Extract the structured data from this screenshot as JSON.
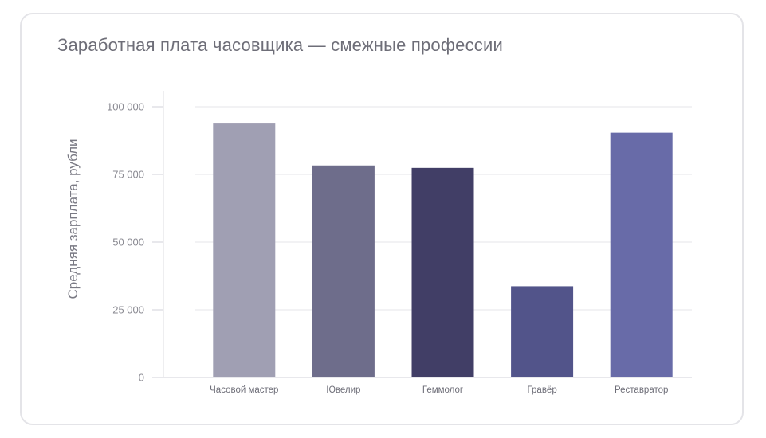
{
  "chart_data": {
    "type": "bar",
    "title": "Заработная плата часовщика — смежные профессии",
    "xlabel": "",
    "ylabel": "Средняя зарплата, рубли",
    "categories": [
      "Часовой мастер",
      "Ювелир",
      "Геммолог",
      "Гравёр",
      "Реставратор"
    ],
    "values": [
      93800,
      78300,
      77400,
      33700,
      90400
    ],
    "colors": [
      "#a09fb3",
      "#6e6d8b",
      "#413e66",
      "#52548a",
      "#686ba8"
    ],
    "ylim": [
      0,
      100000
    ],
    "yticks": [
      0,
      25000,
      50000,
      75000,
      100000
    ],
    "ytick_labels": [
      "0",
      "25 000",
      "50 000",
      "75 000",
      "100 000"
    ],
    "grid": true,
    "legend": "none"
  }
}
